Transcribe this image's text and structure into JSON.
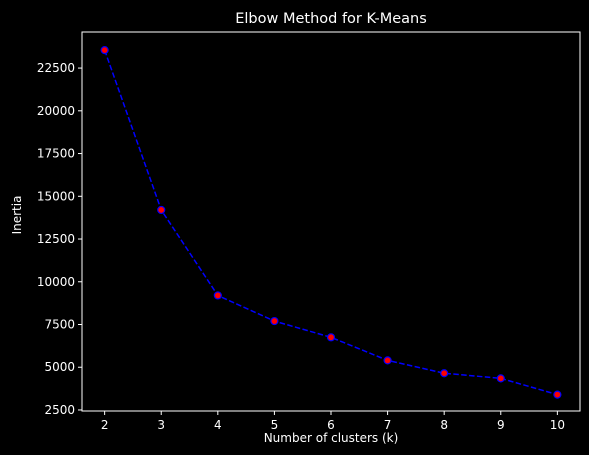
{
  "chart_data": {
    "type": "line",
    "title": "Elbow Method for K-Means",
    "xlabel": "Number of clusters (k)",
    "ylabel": "Inertia",
    "x": [
      2,
      3,
      4,
      5,
      6,
      7,
      8,
      9,
      10
    ],
    "series": [
      {
        "values": [
          23550,
          14200,
          9200,
          7700,
          6750,
          5400,
          4650,
          4350,
          3400
        ],
        "line_color": "#0000ff",
        "line_style": "dashed",
        "marker_face_color": "#ff0000",
        "marker_edge_color": "#0000ff"
      }
    ],
    "xticks": [
      2,
      3,
      4,
      5,
      6,
      7,
      8,
      9,
      10
    ],
    "yticks": [
      2500,
      5000,
      7500,
      10000,
      12500,
      15000,
      17500,
      20000,
      22500
    ],
    "xlim": [
      1.6,
      10.4
    ],
    "ylim": [
      2440,
      24610
    ],
    "grid": false,
    "background_color": "#000000",
    "foreground_color": "#ffffff"
  }
}
